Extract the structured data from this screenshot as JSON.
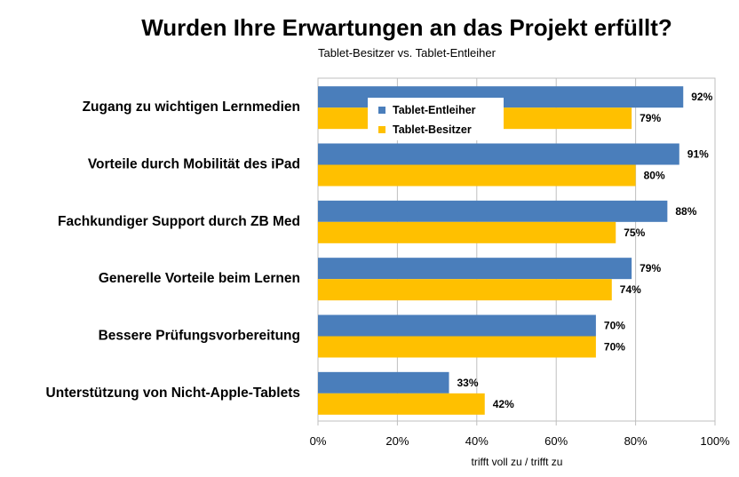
{
  "chart_data": {
    "type": "bar",
    "orientation": "horizontal",
    "title": "Wurden Ihre Erwartungen an das Projekt erfüllt?",
    "subtitle": "Tablet-Besitzer vs. Tablet-Entleiher",
    "xlabel": "trifft voll zu / trifft zu",
    "ylabel": "",
    "xlim": [
      0,
      100
    ],
    "x_ticks": [
      "0%",
      "20%",
      "40%",
      "60%",
      "80%",
      "100%"
    ],
    "grid": true,
    "legend_position": "top-center",
    "categories": [
      "Zugang zu wichtigen Lernmedien",
      "Vorteile durch Mobilität des iPad",
      "Fachkundiger Support durch ZB Med",
      "Generelle Vorteile beim Lernen",
      "Bessere Prüfungsvorbereitung",
      "Unterstützung von Nicht-Apple-Tablets"
    ],
    "series": [
      {
        "name": "Tablet-Entleiher",
        "color": "#4a7ebb",
        "values": [
          92,
          91,
          88,
          79,
          70,
          33
        ],
        "labels": [
          "92%",
          "91%",
          "88%",
          "79%",
          "70%",
          "33%"
        ]
      },
      {
        "name": "Tablet-Besitzer",
        "color": "#ffc000",
        "values": [
          79,
          80,
          75,
          74,
          70,
          42
        ],
        "labels": [
          "79%",
          "80%",
          "75%",
          "74%",
          "70%",
          "42%"
        ]
      }
    ]
  }
}
